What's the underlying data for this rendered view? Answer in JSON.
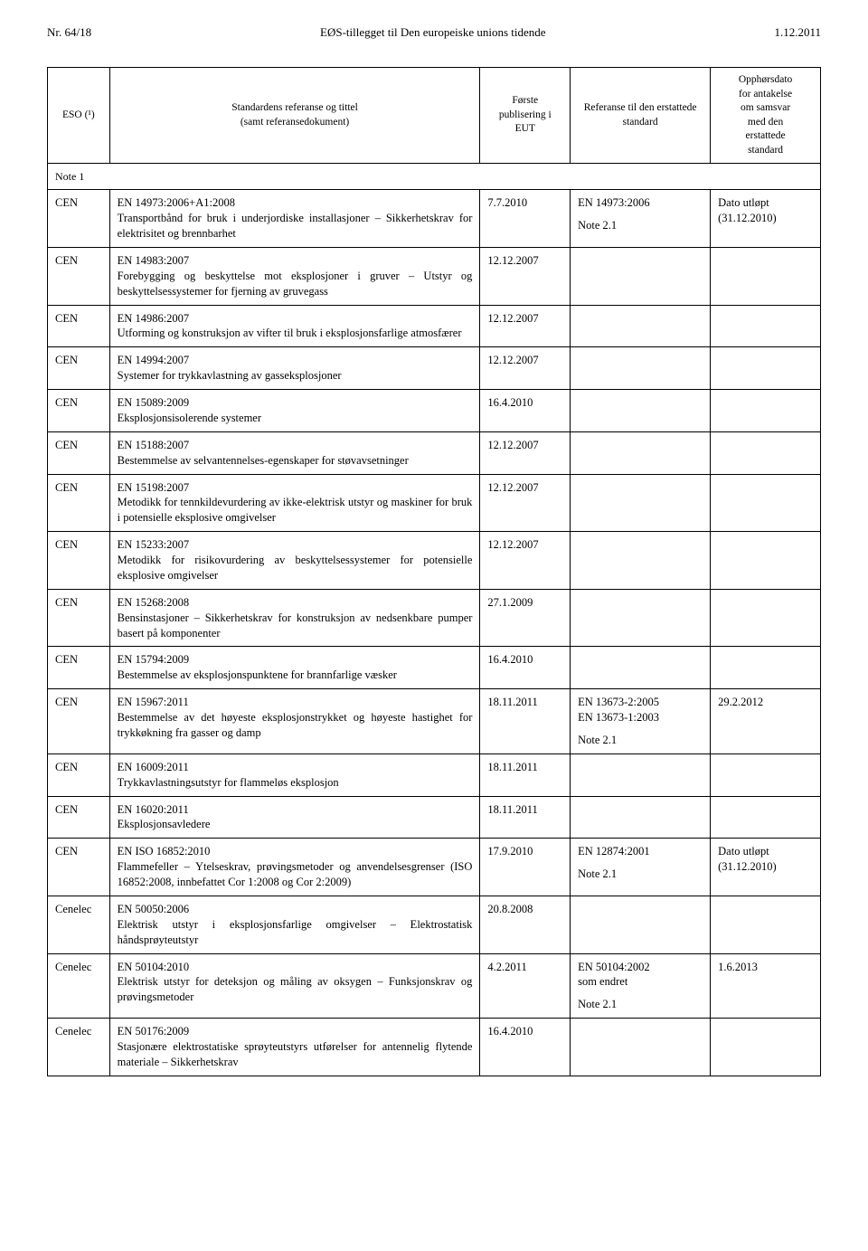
{
  "page_meta": {
    "page_number_label": "Nr. 64/18",
    "journal_title": "EØS-tillegget til Den europeiske unions tidende",
    "date_label": "1.12.2011"
  },
  "columns": {
    "eso": "ESO (¹)",
    "title": "Standardens referanse og tittel\n(samt referansedokument)",
    "first_pub": "Første\npublisering i\nEUT",
    "ref_replaced": "Referanse til den erstattede\nstandard",
    "cessation": "Opphørsdato\nfor antakelse\nom samsvar\nmed den\nerstattede\nstandard"
  },
  "note1_label": "Note 1",
  "rows": [
    {
      "eso": "CEN",
      "code": "EN 14973:2006+A1:2008",
      "desc": "Transportbånd for bruk i underjordiske installasjoner – Sikkerhetskrav for elektrisitet og brennbarhet",
      "pub": "7.7.2010",
      "ref": "EN 14973:2006",
      "ref_note": "Note 2.1",
      "opp": "Dato utløpt\n(31.12.2010)"
    },
    {
      "eso": "CEN",
      "code": "EN 14983:2007",
      "desc": "Forebygging og beskyttelse mot eksplosjoner i gruver – Utstyr og beskyttelsessystemer for fjerning av gruvegass",
      "pub": "12.12.2007",
      "ref": "",
      "ref_note": "",
      "opp": ""
    },
    {
      "eso": "CEN",
      "code": "EN 14986:2007",
      "desc": "Utforming og konstruksjon av vifter til bruk i eksplosjonsfarlige atmosfærer",
      "pub": "12.12.2007",
      "ref": "",
      "ref_note": "",
      "opp": ""
    },
    {
      "eso": "CEN",
      "code": "EN 14994:2007",
      "desc": "Systemer for trykkavlastning av gasseksplosjoner",
      "pub": "12.12.2007",
      "ref": "",
      "ref_note": "",
      "opp": ""
    },
    {
      "eso": "CEN",
      "code": "EN 15089:2009",
      "desc": "Eksplosjonsisolerende systemer",
      "pub": "16.4.2010",
      "ref": "",
      "ref_note": "",
      "opp": ""
    },
    {
      "eso": "CEN",
      "code": "EN 15188:2007",
      "desc": "Bestemmelse av selvantennelses-egenskaper for støvavsetninger",
      "pub": "12.12.2007",
      "ref": "",
      "ref_note": "",
      "opp": ""
    },
    {
      "eso": "CEN",
      "code": "EN 15198:2007",
      "desc": "Metodikk for tennkildevurdering av ikke-elektrisk utstyr og maskiner for bruk i potensielle eksplosive omgivelser",
      "pub": "12.12.2007",
      "ref": "",
      "ref_note": "",
      "opp": ""
    },
    {
      "eso": "CEN",
      "code": "EN 15233:2007",
      "desc": "Metodikk for risikovurdering av beskyttelsessystemer for potensielle eksplosive omgivelser",
      "pub": "12.12.2007",
      "ref": "",
      "ref_note": "",
      "opp": ""
    },
    {
      "eso": "CEN",
      "code": "EN 15268:2008",
      "desc": "Bensinstasjoner – Sikkerhetskrav for konstruksjon av nedsenkbare pumper basert på komponenter",
      "pub": "27.1.2009",
      "ref": "",
      "ref_note": "",
      "opp": ""
    },
    {
      "eso": "CEN",
      "code": "EN 15794:2009",
      "desc": "Bestemmelse av eksplosjonspunktene for brannfarlige væsker",
      "pub": "16.4.2010",
      "ref": "",
      "ref_note": "",
      "opp": ""
    },
    {
      "eso": "CEN",
      "code": "EN 15967:2011",
      "desc": "Bestemmelse av det høyeste eksplosjonstrykket og høyeste hastighet for trykkøkning fra gasser og damp",
      "pub": "18.11.2011",
      "ref": "EN 13673-2:2005\nEN 13673-1:2003",
      "ref_note": "Note 2.1",
      "opp": "29.2.2012"
    },
    {
      "eso": "CEN",
      "code": "EN 16009:2011",
      "desc": "Trykkavlastningsutstyr for flammeløs eksplosjon",
      "pub": "18.11.2011",
      "ref": "",
      "ref_note": "",
      "opp": ""
    },
    {
      "eso": "CEN",
      "code": "EN 16020:2011",
      "desc": "Eksplosjonsavledere",
      "pub": "18.11.2011",
      "ref": "",
      "ref_note": "",
      "opp": ""
    },
    {
      "eso": "CEN",
      "code": "EN ISO 16852:2010",
      "desc": "Flammefeller – Ytelseskrav, prøvingsmetoder og anvendelsesgrenser (ISO 16852:2008, innbefattet Cor 1:2008 og Cor 2:2009)",
      "pub": "17.9.2010",
      "ref": "EN 12874:2001",
      "ref_note": "Note 2.1",
      "opp": "Dato utløpt\n(31.12.2010)"
    },
    {
      "eso": "Cenelec",
      "code": "EN 50050:2006",
      "desc": "Elektrisk utstyr i eksplosjonsfarlige omgivelser – Elektrostatisk håndsprøyteutstyr",
      "pub": "20.8.2008",
      "ref": "",
      "ref_note": "",
      "opp": ""
    },
    {
      "eso": "Cenelec",
      "code": "EN 50104:2010",
      "desc": "Elektrisk utstyr for deteksjon og måling av oksygen – Funksjonskrav og prøvingsmetoder",
      "pub": "4.2.2011",
      "ref": "EN 50104:2002\nsom endret",
      "ref_note": "Note 2.1",
      "opp": "1.6.2013"
    },
    {
      "eso": "Cenelec",
      "code": "EN 50176:2009",
      "desc": "Stasjonære elektrostatiske sprøyteutstyrs utførelser for antennelig flytende materiale – Sikkerhetskrav",
      "pub": "16.4.2010",
      "ref": "",
      "ref_note": "",
      "opp": ""
    }
  ]
}
